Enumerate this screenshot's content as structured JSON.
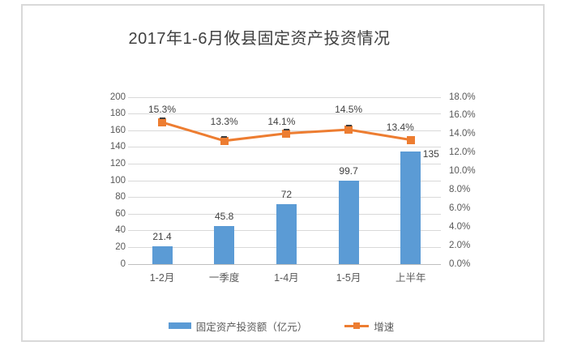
{
  "chart_data": {
    "type": "bar+line",
    "title": "2017年1-6月攸县固定资产投资情况",
    "categories": [
      "1-2月",
      "一季度",
      "1-4月",
      "1-5月",
      "上半年"
    ],
    "series": [
      {
        "name": "固定资产投资额（亿元）",
        "type": "bar",
        "axis": "left",
        "color": "#5b9bd5",
        "values": [
          21.4,
          45.8,
          72,
          99.7,
          135
        ],
        "data_labels": [
          "21.4",
          "45.8",
          "72",
          "99.7",
          "135"
        ]
      },
      {
        "name": "增速",
        "type": "line",
        "axis": "right",
        "color": "#ed7d31",
        "values": [
          15.3,
          13.3,
          14.1,
          14.5,
          13.4
        ],
        "data_labels": [
          "15.3%",
          "13.3%",
          "14.1%",
          "14.5%",
          "13.4%"
        ]
      }
    ],
    "left_axis": {
      "min": 0,
      "max": 200,
      "step": 20,
      "tick_labels": [
        "0",
        "20",
        "40",
        "60",
        "80",
        "100",
        "120",
        "140",
        "160",
        "180",
        "200"
      ]
    },
    "right_axis": {
      "min": 0,
      "max": 18,
      "step": 2,
      "tick_labels": [
        "0.0%",
        "2.0%",
        "4.0%",
        "6.0%",
        "8.0%",
        "10.0%",
        "12.0%",
        "14.0%",
        "16.0%",
        "18.0%"
      ]
    },
    "legend": {
      "position": "bottom"
    },
    "grid": "horizontal",
    "colors": {
      "gridline": "#d9d9d9",
      "axis_line": "#bfbfbf",
      "axis_text": "#595959",
      "label_text": "#404040",
      "frame_border": "#d9d9d9",
      "background": "#ffffff"
    }
  }
}
